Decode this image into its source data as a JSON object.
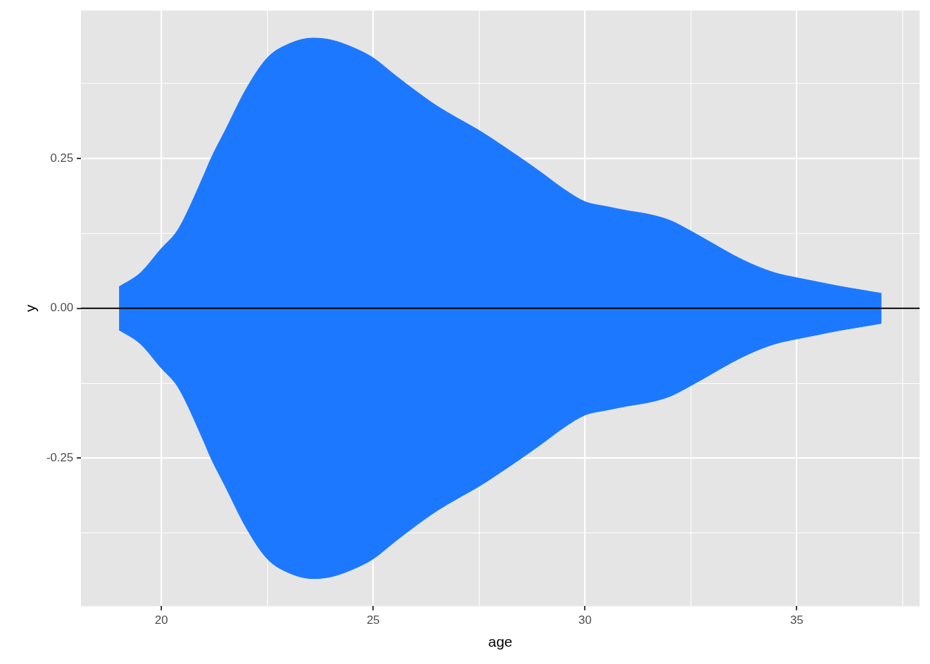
{
  "chart_data": {
    "type": "area",
    "xlabel": "age",
    "ylabel": "y",
    "x": [
      19,
      19.5,
      20,
      20.33,
      20.5,
      21,
      21.17,
      21.5,
      22,
      22.5,
      23,
      23.58,
      24,
      24.5,
      25,
      25.5,
      26,
      26.5,
      27,
      27.5,
      28,
      28.5,
      29,
      29.5,
      30,
      30.5,
      31,
      31.5,
      32,
      32.5,
      33,
      33.5,
      34,
      34.5,
      35,
      35.5,
      36,
      36.5,
      37
    ],
    "series": [
      {
        "color": "#1c79ff",
        "values": [
          0.036,
          0.059,
          0.1,
          0.125,
          0.145,
          0.222,
          0.25,
          0.296,
          0.366,
          0.418,
          0.441,
          0.451,
          0.448,
          0.436,
          0.418,
          0.39,
          0.363,
          0.338,
          0.317,
          0.297,
          0.274,
          0.25,
          0.225,
          0.199,
          0.178,
          0.17,
          0.163,
          0.157,
          0.147,
          0.129,
          0.109,
          0.089,
          0.072,
          0.059,
          0.051,
          0.044,
          0.037,
          0.031,
          0.025
        ]
      },
      {
        "color": "#1c79ff",
        "values": [
          -0.036,
          -0.059,
          -0.1,
          -0.125,
          -0.145,
          -0.222,
          -0.25,
          -0.296,
          -0.366,
          -0.418,
          -0.441,
          -0.451,
          -0.448,
          -0.436,
          -0.418,
          -0.39,
          -0.363,
          -0.338,
          -0.317,
          -0.297,
          -0.274,
          -0.25,
          -0.225,
          -0.199,
          -0.178,
          -0.17,
          -0.163,
          -0.157,
          -0.147,
          -0.129,
          -0.109,
          -0.089,
          -0.072,
          -0.059,
          -0.051,
          -0.044,
          -0.037,
          -0.031,
          -0.025
        ]
      }
    ],
    "xlim": [
      18.1,
      37.9
    ],
    "xticks": [
      20,
      {
        "value": 22.5,
        "label": null
      },
      25,
      {
        "value": 27.5,
        "label": null
      },
      30,
      {
        "value": 32.5,
        "label": null
      },
      35,
      {
        "value": 37.5,
        "label": null
      }
    ],
    "ylim": [
      -0.497,
      0.497
    ],
    "yticks": [
      {
        "value": -0.375,
        "label": null
      },
      -0.25,
      {
        "value": -0.125,
        "label": null
      },
      {
        "value": 0,
        "label": "0.00"
      },
      {
        "value": 0.125,
        "label": null
      },
      0.25,
      {
        "value": 0.375,
        "label": null
      }
    ],
    "grid": true,
    "ref_lines": [
      {
        "axis": "y",
        "value": 0,
        "color": "#000000"
      }
    ]
  }
}
